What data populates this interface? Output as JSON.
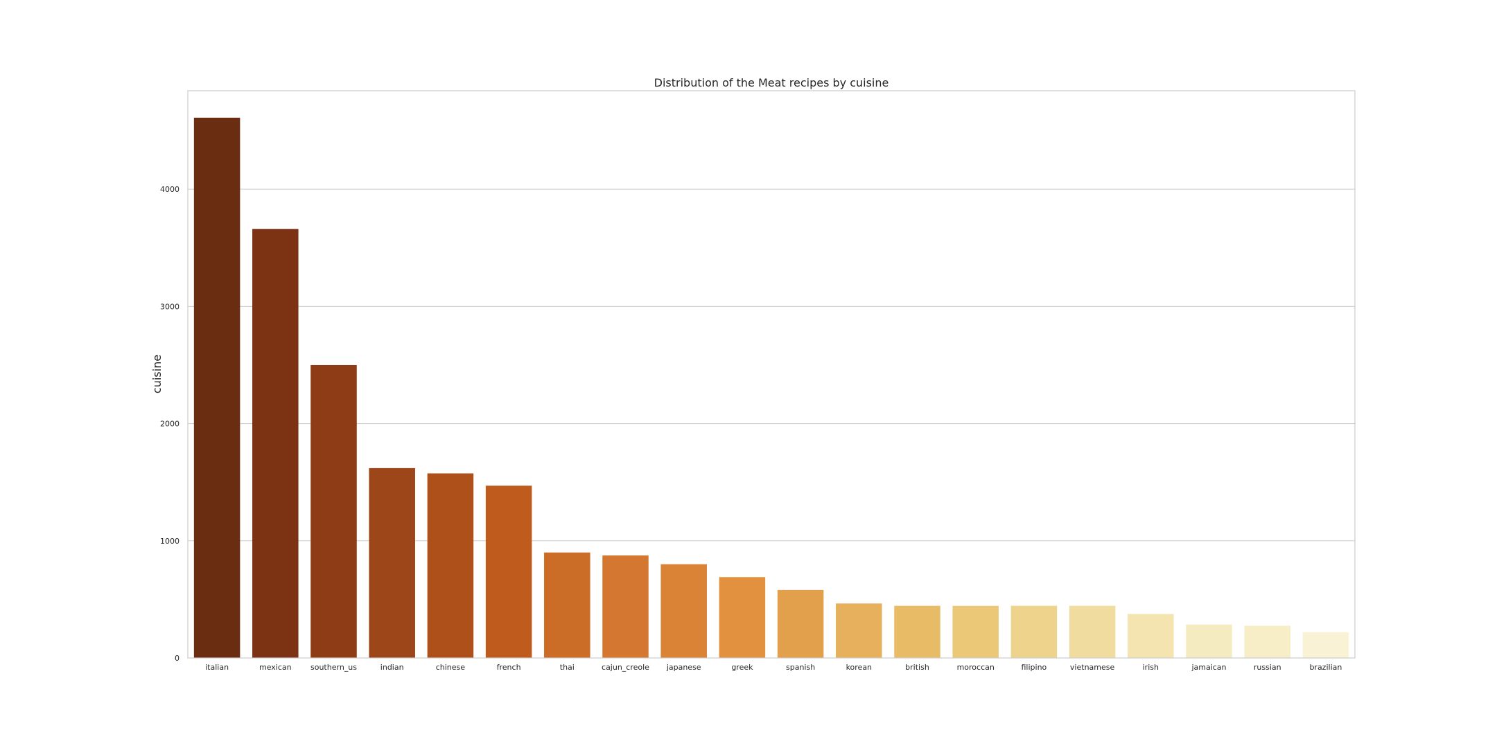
{
  "chart_data": {
    "type": "bar",
    "title": "Distribution of the Meat recipes by cuisine",
    "xlabel": "",
    "ylabel": "cuisine",
    "ylim": [
      0,
      4840
    ],
    "yticks": [
      0,
      1000,
      2000,
      3000,
      4000
    ],
    "grid": "horizontal",
    "categories": [
      "italian",
      "mexican",
      "southern_us",
      "indian",
      "chinese",
      "french",
      "thai",
      "cajun_creole",
      "japanese",
      "greek",
      "spanish",
      "korean",
      "british",
      "moroccan",
      "filipino",
      "vietnamese",
      "irish",
      "jamaican",
      "russian",
      "brazilian"
    ],
    "values": [
      4610,
      3660,
      2500,
      1620,
      1575,
      1470,
      900,
      875,
      800,
      690,
      580,
      465,
      445,
      445,
      445,
      445,
      375,
      285,
      275,
      220
    ],
    "colors": [
      "#6b2d12",
      "#7b3313",
      "#8e3c15",
      "#9d4619",
      "#ae5019",
      "#bf5c1d",
      "#cb6c27",
      "#d47730",
      "#da8337",
      "#e2913f",
      "#e3a04c",
      "#e6b05d",
      "#e8bc66",
      "#ebc877",
      "#edd38b",
      "#f0dc9e",
      "#f3e4b0",
      "#f5ebc0",
      "#f7eec8",
      "#f9f2d4"
    ]
  }
}
